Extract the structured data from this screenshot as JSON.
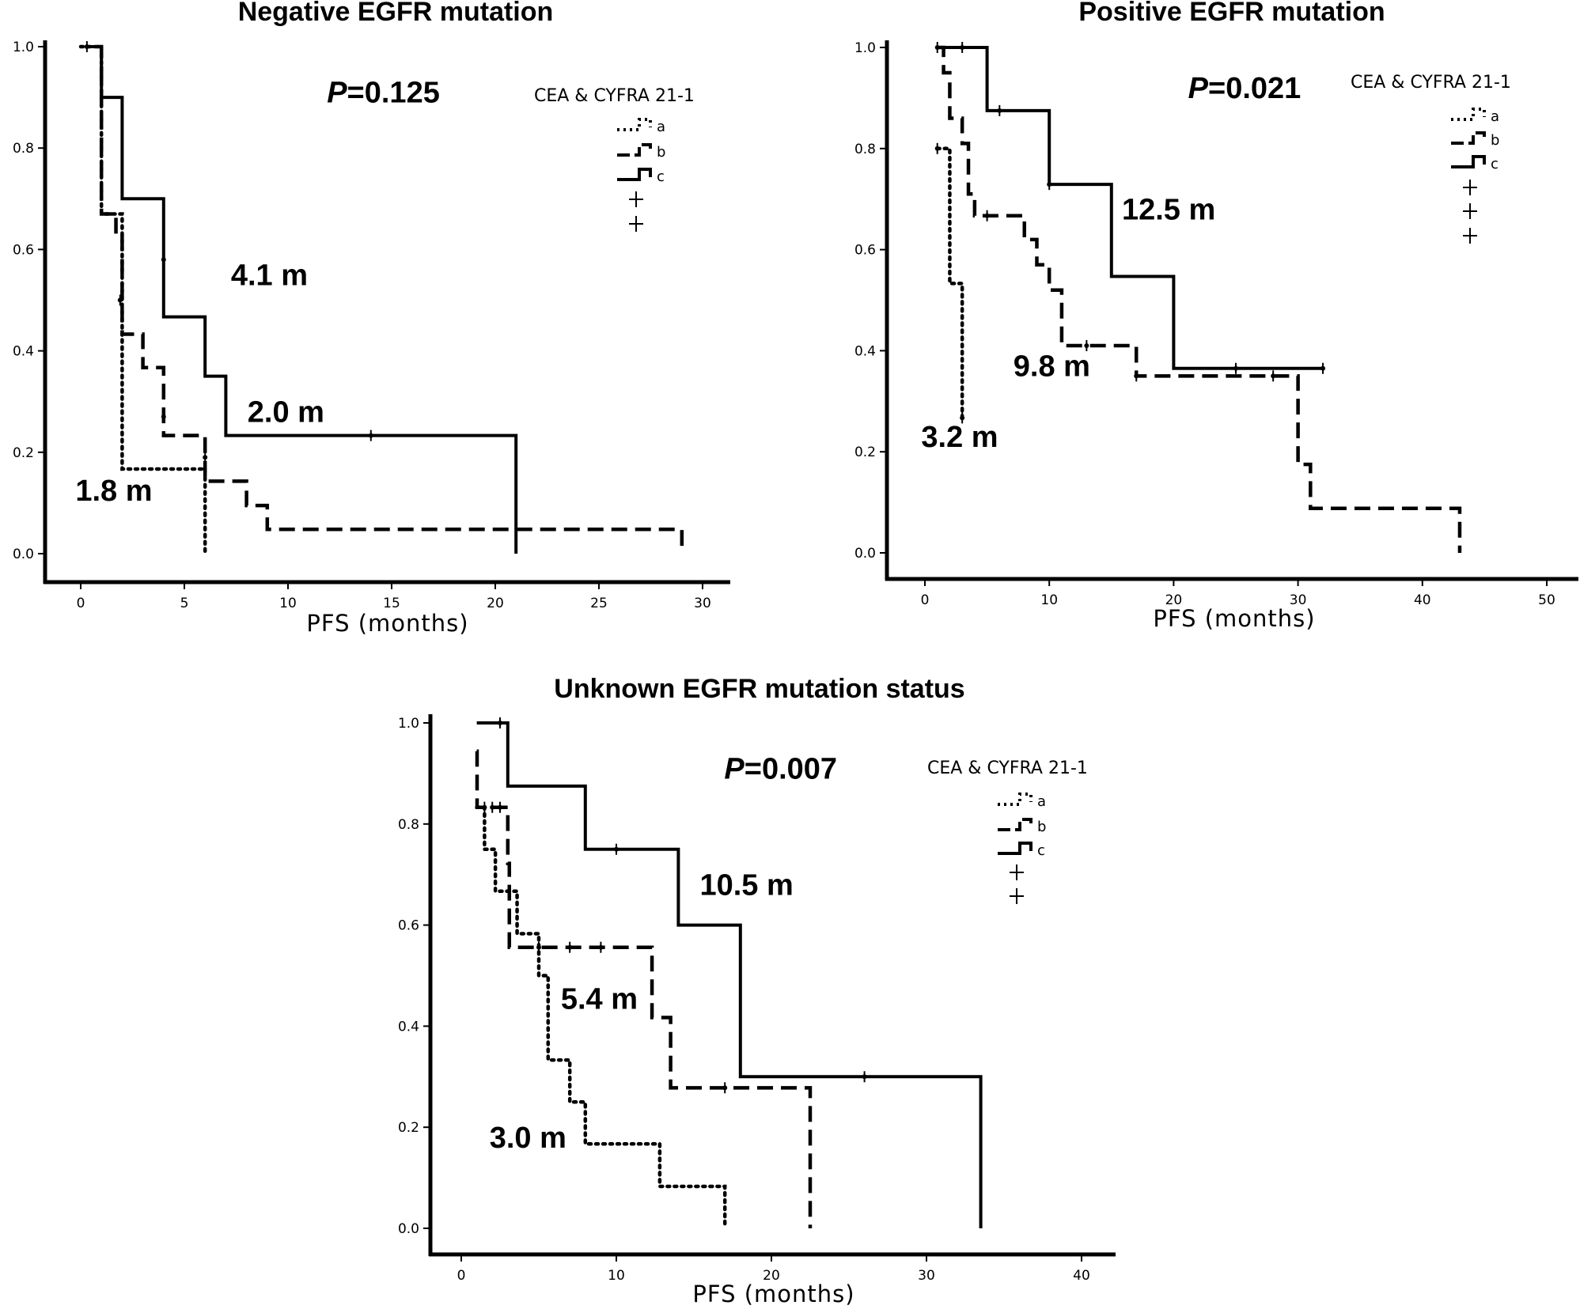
{
  "chart_data": [
    {
      "type": "line",
      "title": "Negative EGFR mutation",
      "xlabel": "PFS (months)",
      "ylabel": "",
      "xlim": [
        -1.7,
        31.3
      ],
      "ylim": [
        0,
        1
      ],
      "xticks": [
        0,
        5,
        10,
        15,
        20,
        25,
        30
      ],
      "yticks": [
        "1.0",
        "0.8",
        "0.6",
        "0.4",
        "0.2",
        "0.0"
      ],
      "p_value": {
        "prefix": "P",
        "text": "=0.125",
        "x": 14.6,
        "y": 0.91
      },
      "legend": {
        "title": "CEA & CYFRA 21-1",
        "labels": [
          "a",
          "b",
          "c"
        ],
        "censor_marks": 2,
        "placement": "top-right"
      },
      "annotations": [
        {
          "text": "4.1 m",
          "x": 9.1,
          "y": 0.55
        },
        {
          "text": "2.0 m",
          "x": 9.9,
          "y": 0.28
        },
        {
          "text": "1.8 m",
          "x": 1.6,
          "y": 0.125
        }
      ],
      "series": [
        {
          "name": "a",
          "style": "dotted",
          "steps": [
            [
              0,
              1.0
            ],
            [
              1,
              0.67
            ],
            [
              2,
              0.167
            ],
            [
              6,
              0
            ]
          ],
          "censored": [
            [
              1.9,
              0.5
            ]
          ]
        },
        {
          "name": "b",
          "style": "dashed",
          "steps": [
            [
              0.8,
              1.0
            ],
            [
              1,
              0.67
            ],
            [
              1.7,
              0.63
            ],
            [
              2,
              0.433
            ],
            [
              3,
              0.367
            ],
            [
              4,
              0.233
            ],
            [
              6,
              0.143
            ],
            [
              8,
              0.095
            ],
            [
              9,
              0.048
            ],
            [
              29,
              0
            ]
          ],
          "censored": [
            [
              4,
              0.27
            ],
            [
              6,
              0.19
            ]
          ]
        },
        {
          "name": "c",
          "style": "solid",
          "steps": [
            [
              0.3,
              1.0
            ],
            [
              1,
              0.9
            ],
            [
              2,
              0.7
            ],
            [
              4,
              0.467
            ],
            [
              6,
              0.35
            ],
            [
              7,
              0.233
            ],
            [
              21,
              0
            ]
          ],
          "censored": [
            [
              0.3,
              1.0
            ],
            [
              14,
              0.233
            ],
            [
              4,
              0.58
            ]
          ]
        }
      ]
    },
    {
      "type": "line",
      "title": "Positive EGFR mutation",
      "xlabel": "PFS (months)",
      "ylabel": "",
      "xlim": [
        -3,
        52
      ],
      "ylim": [
        0,
        1
      ],
      "xticks": [
        0,
        10,
        20,
        30,
        40,
        50
      ],
      "yticks": [
        "1.0",
        "0.8",
        "0.6",
        "0.4",
        "0.2",
        "0.0"
      ],
      "p_value": {
        "prefix": "P",
        "text": "=0.021",
        "x": 25.7,
        "y": 0.92
      },
      "legend": {
        "title": "CEA & CYFRA 21-1",
        "labels": [
          "a",
          "b",
          "c"
        ],
        "censor_marks": 3,
        "placement": "top-right"
      },
      "annotations": [
        {
          "text": "12.5 m",
          "x": 19.6,
          "y": 0.68
        },
        {
          "text": "9.8 m",
          "x": 10.2,
          "y": 0.37
        },
        {
          "text": "3.2 m",
          "x": 2.8,
          "y": 0.23
        }
      ],
      "series": [
        {
          "name": "a",
          "style": "dotted",
          "steps": [
            [
              1,
              0.8
            ],
            [
              2,
              0.533
            ],
            [
              3,
              0.267
            ]
          ],
          "end_x": 3,
          "censored": [
            [
              1,
              0.8
            ],
            [
              3,
              0.267
            ]
          ]
        },
        {
          "name": "b",
          "style": "dashed",
          "steps": [
            [
              1,
              1.0
            ],
            [
              1.5,
              0.95
            ],
            [
              2,
              0.86
            ],
            [
              3,
              0.81
            ],
            [
              3.5,
              0.71
            ],
            [
              4,
              0.667
            ],
            [
              8,
              0.62
            ],
            [
              9,
              0.57
            ],
            [
              10,
              0.52
            ],
            [
              11,
              0.41
            ],
            [
              17,
              0.35
            ],
            [
              30,
              0.175
            ],
            [
              31,
              0.088
            ],
            [
              43,
              0
            ]
          ],
          "censored": [
            [
              5,
              0.667
            ],
            [
              13,
              0.41
            ],
            [
              17,
              0.35
            ],
            [
              28,
              0.35
            ]
          ]
        },
        {
          "name": "c",
          "style": "solid",
          "steps": [
            [
              1,
              1.0
            ],
            [
              5,
              0.875
            ],
            [
              10,
              0.729
            ],
            [
              15,
              0.547
            ],
            [
              20,
              0.365
            ]
          ],
          "end_x": 32,
          "censored": [
            [
              1,
              1.0
            ],
            [
              3,
              1.0
            ],
            [
              6,
              0.875
            ],
            [
              10,
              0.729
            ],
            [
              25,
              0.365
            ],
            [
              32,
              0.365
            ]
          ]
        }
      ]
    },
    {
      "type": "line",
      "title": "Unknown EGFR mutation status",
      "xlabel": "PFS (months)",
      "ylabel": "",
      "xlim": [
        -2,
        42
      ],
      "ylim": [
        0,
        1
      ],
      "xticks": [
        0,
        10,
        20,
        30,
        40
      ],
      "yticks": [
        "1.0",
        "0.8",
        "0.6",
        "0.4",
        "0.2",
        "0.0"
      ],
      "p_value": {
        "prefix": "P",
        "text": "=0.007",
        "x": 20.6,
        "y": 0.91
      },
      "legend": {
        "title": "CEA & CYFRA 21-1",
        "labels": [
          "a",
          "b",
          "c"
        ],
        "censor_marks": 2,
        "placement": "top-right"
      },
      "annotations": [
        {
          "text": "10.5 m",
          "x": 18.4,
          "y": 0.68
        },
        {
          "text": "5.4 m",
          "x": 8.9,
          "y": 0.455
        },
        {
          "text": "3.0 m",
          "x": 4.3,
          "y": 0.18
        }
      ],
      "series": [
        {
          "name": "a",
          "style": "dotted",
          "steps": [
            [
              1,
              0.833
            ],
            [
              1.5,
              0.75
            ],
            [
              2.2,
              0.667
            ],
            [
              3.6,
              0.583
            ],
            [
              5,
              0.5
            ],
            [
              5.6,
              0.333
            ],
            [
              7,
              0.25
            ],
            [
              8,
              0.167
            ],
            [
              12.8,
              0.083
            ],
            [
              17,
              0
            ]
          ],
          "censored": []
        },
        {
          "name": "b",
          "style": "dashed",
          "steps": [
            [
              1,
              0.944
            ],
            [
              1.02,
              0.833
            ],
            [
              3,
              0.722
            ],
            [
              3.1,
              0.556
            ],
            [
              12.3,
              0.417
            ],
            [
              13.5,
              0.278
            ],
            [
              22.5,
              0
            ]
          ],
          "censored": [
            [
              1.5,
              0.833
            ],
            [
              2,
              0.833
            ],
            [
              2.5,
              0.833
            ],
            [
              5,
              0.556
            ],
            [
              7,
              0.556
            ],
            [
              9,
              0.556
            ],
            [
              17,
              0.278
            ]
          ]
        },
        {
          "name": "c",
          "style": "solid",
          "steps": [
            [
              1,
              1.0
            ],
            [
              3,
              0.875
            ],
            [
              8,
              0.75
            ],
            [
              14,
              0.6
            ],
            [
              18,
              0.3
            ],
            [
              33.5,
              0
            ]
          ],
          "censored": [
            [
              2.5,
              1.0
            ],
            [
              10,
              0.75
            ],
            [
              26,
              0.3
            ]
          ]
        }
      ]
    }
  ]
}
